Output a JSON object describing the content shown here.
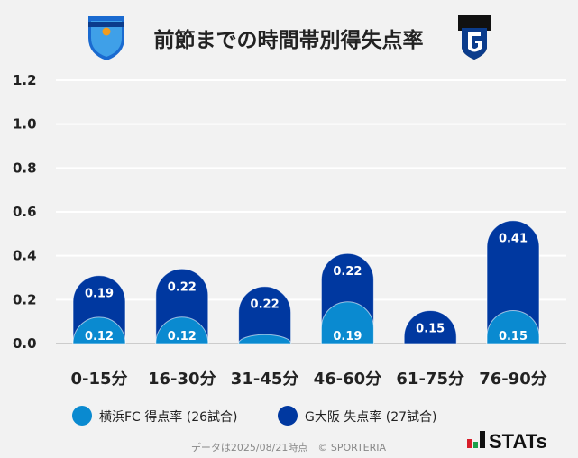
{
  "chart_data": {
    "type": "bar",
    "title": "前節までの時間帯別得失点率",
    "categories": [
      "0-15分",
      "16-30分",
      "31-45分",
      "46-60分",
      "61-75分",
      "76-90分"
    ],
    "series": [
      {
        "name": "横浜FC 得点率 (26試合)",
        "values": [
          0.12,
          0.12,
          0.04,
          0.19,
          0.0,
          0.15
        ],
        "labels": [
          "0.12",
          "0.12",
          "",
          "0.19",
          "",
          "0.15"
        ],
        "color": "#0a8ad0"
      },
      {
        "name": "G大阪 失点率 (27試合)",
        "values": [
          0.19,
          0.22,
          0.22,
          0.22,
          0.15,
          0.41
        ],
        "labels": [
          "0.19",
          "0.22",
          "0.22",
          "0.22",
          "0.15",
          "0.41"
        ],
        "color": "#0038a0"
      }
    ],
    "stacked": true,
    "yticks": [
      "0.0",
      "0.2",
      "0.4",
      "0.6",
      "0.8",
      "1.0",
      "1.2"
    ],
    "ylim": [
      0,
      1.2
    ],
    "grid": true,
    "legend_placement": "bottom"
  },
  "logos": {
    "left": "YOKOHAMA FC",
    "right": "G"
  },
  "footer": {
    "note": "データは2025/08/21時点　© SPORTERIA",
    "brand": "STATs"
  }
}
